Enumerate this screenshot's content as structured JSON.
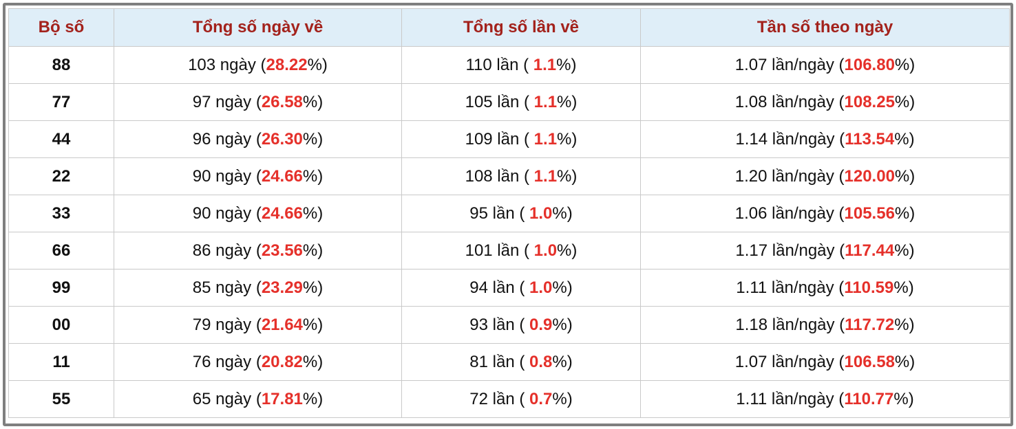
{
  "table": {
    "headers": [
      "Bộ số",
      "Tổng số ngày về",
      "Tổng số lần về",
      "Tần số theo ngày"
    ],
    "rows": [
      {
        "id": "88",
        "days": [
          "103 ngày (",
          "28.22",
          "%)"
        ],
        "times": [
          "110 lần ( ",
          "1.1",
          "%)"
        ],
        "freq": [
          "1.07 lần/ngày (",
          "106.80",
          "%)"
        ]
      },
      {
        "id": "77",
        "days": [
          "97 ngày (",
          "26.58",
          "%)"
        ],
        "times": [
          "105 lần ( ",
          "1.1",
          "%)"
        ],
        "freq": [
          "1.08 lần/ngày (",
          "108.25",
          "%)"
        ]
      },
      {
        "id": "44",
        "days": [
          "96 ngày (",
          "26.30",
          "%)"
        ],
        "times": [
          "109 lần ( ",
          "1.1",
          "%)"
        ],
        "freq": [
          "1.14 lần/ngày (",
          "113.54",
          "%)"
        ]
      },
      {
        "id": "22",
        "days": [
          "90 ngày (",
          "24.66",
          "%)"
        ],
        "times": [
          "108 lần ( ",
          "1.1",
          "%)"
        ],
        "freq": [
          "1.20 lần/ngày (",
          "120.00",
          "%)"
        ]
      },
      {
        "id": "33",
        "days": [
          "90 ngày (",
          "24.66",
          "%)"
        ],
        "times": [
          "95 lần ( ",
          "1.0",
          "%)"
        ],
        "freq": [
          "1.06 lần/ngày (",
          "105.56",
          "%)"
        ]
      },
      {
        "id": "66",
        "days": [
          "86 ngày (",
          "23.56",
          "%)"
        ],
        "times": [
          "101 lần ( ",
          "1.0",
          "%)"
        ],
        "freq": [
          "1.17 lần/ngày (",
          "117.44",
          "%)"
        ]
      },
      {
        "id": "99",
        "days": [
          "85 ngày (",
          "23.29",
          "%)"
        ],
        "times": [
          "94 lần ( ",
          "1.0",
          "%)"
        ],
        "freq": [
          "1.11 lần/ngày (",
          "110.59",
          "%)"
        ]
      },
      {
        "id": "00",
        "days": [
          "79 ngày (",
          "21.64",
          "%)"
        ],
        "times": [
          "93 lần ( ",
          "0.9",
          "%)"
        ],
        "freq": [
          "1.18 lần/ngày (",
          "117.72",
          "%)"
        ]
      },
      {
        "id": "11",
        "days": [
          "76 ngày (",
          "20.82",
          "%)"
        ],
        "times": [
          "81 lần ( ",
          "0.8",
          "%)"
        ],
        "freq": [
          "1.07 lần/ngày (",
          "106.58",
          "%)"
        ]
      },
      {
        "id": "55",
        "days": [
          "65 ngày (",
          "17.81",
          "%)"
        ],
        "times": [
          "72 lần ( ",
          "0.7",
          "%)"
        ],
        "freq": [
          "1.11 lần/ngày (",
          "110.77",
          "%)"
        ]
      }
    ]
  }
}
